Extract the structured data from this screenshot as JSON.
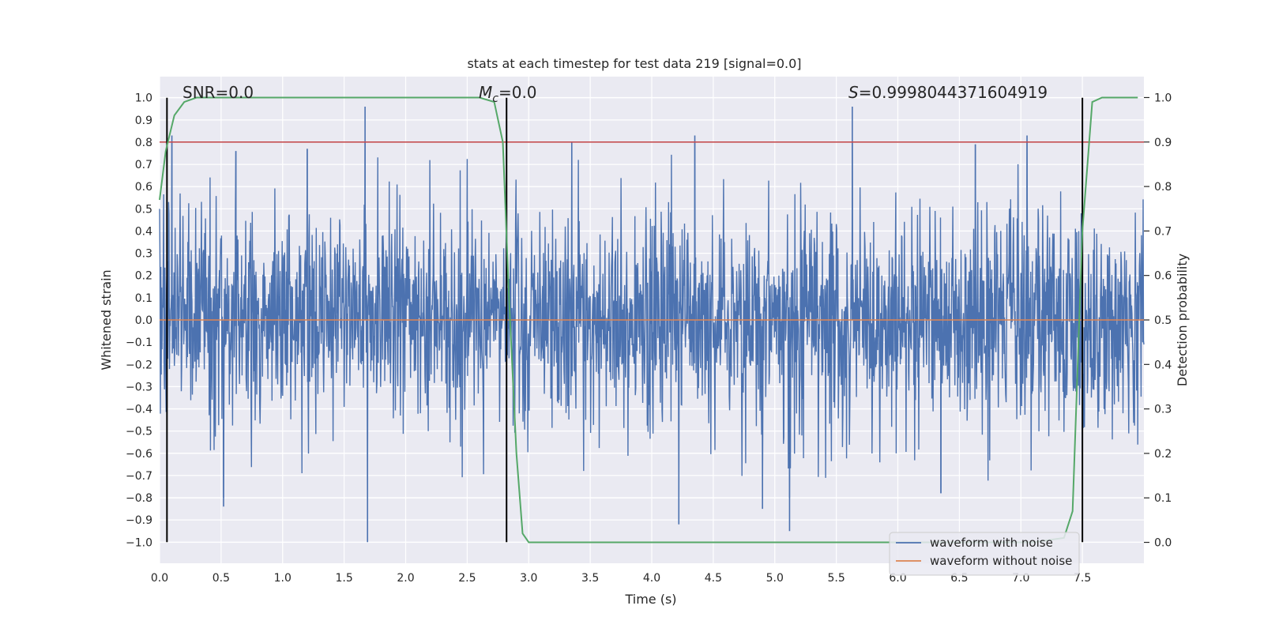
{
  "chart_data": {
    "type": "line",
    "title": "stats at each timestep for test data 219 [signal=0.0]",
    "xlabel": "Time (s)",
    "ylabel": "Whitened strain",
    "y2label": "Detection probability",
    "xlim": [
      0.0,
      8.0
    ],
    "ylim": [
      -1.095,
      1.095
    ],
    "y2lim": [
      -0.047,
      1.047
    ],
    "x_ticks": [
      0.0,
      0.5,
      1.0,
      1.5,
      2.0,
      2.5,
      3.0,
      3.5,
      4.0,
      4.5,
      5.0,
      5.5,
      6.0,
      6.5,
      7.0,
      7.5
    ],
    "x_tick_labels": [
      "0.0",
      "0.5",
      "1.0",
      "1.5",
      "2.0",
      "2.5",
      "3.0",
      "3.5",
      "4.0",
      "4.5",
      "5.0",
      "5.5",
      "6.0",
      "6.5",
      "7.0",
      "7.5"
    ],
    "y_ticks": [
      1.0,
      0.9,
      0.8,
      0.7,
      0.6,
      0.5,
      0.4,
      0.3,
      0.2,
      0.1,
      0.0,
      -0.1,
      -0.2,
      -0.3,
      -0.4,
      -0.5,
      -0.6,
      -0.7,
      -0.8,
      -0.9,
      -1.0
    ],
    "y_tick_labels": [
      "1.0",
      "0.9",
      "0.8",
      "0.7",
      "0.6",
      "0.5",
      "0.4",
      "0.3",
      "0.2",
      "0.1",
      "0.0",
      "−0.1",
      "−0.2",
      "−0.3",
      "−0.4",
      "−0.5",
      "−0.6",
      "−0.7",
      "−0.8",
      "−0.9",
      "−1.0"
    ],
    "y2_ticks": [
      1.0,
      0.9,
      0.8,
      0.7,
      0.6,
      0.5,
      0.4,
      0.3,
      0.2,
      0.1,
      0.0
    ],
    "y2_tick_labels": [
      "1.0",
      "0.9",
      "0.8",
      "0.7",
      "0.6",
      "0.5",
      "0.4",
      "0.3",
      "0.2",
      "0.1",
      "0.0"
    ],
    "series": [
      {
        "name": "waveform with noise",
        "color": "#4c72b0",
        "description": "noise-dominated whitened strain, roughly ±0.4 with spikes to ±1.0",
        "noise_amplitude": 0.4,
        "spikes": [
          {
            "x": 1.67,
            "y": 0.96
          },
          {
            "x": 5.63,
            "y": 0.96
          },
          {
            "x": 1.69,
            "y": -1.0
          },
          {
            "x": 5.12,
            "y": -0.95
          },
          {
            "x": 4.22,
            "y": -0.92
          },
          {
            "x": 0.52,
            "y": -0.84
          },
          {
            "x": 4.35,
            "y": 0.83
          },
          {
            "x": 7.05,
            "y": 0.83
          },
          {
            "x": 3.35,
            "y": 0.8
          },
          {
            "x": 0.1,
            "y": 0.83
          },
          {
            "x": 4.9,
            "y": -0.85
          },
          {
            "x": 6.63,
            "y": 0.79
          },
          {
            "x": 0.62,
            "y": 0.76
          },
          {
            "x": 1.2,
            "y": 0.77
          },
          {
            "x": 6.35,
            "y": -0.78
          }
        ]
      },
      {
        "name": "waveform without noise",
        "color": "#dd8452",
        "x": [
          0.0,
          8.0
        ],
        "y": [
          0.0,
          0.0
        ]
      },
      {
        "name": "detection probability",
        "axis": "right",
        "color": "#55a868",
        "x": [
          0.0,
          0.05,
          0.12,
          0.2,
          0.3,
          0.4,
          0.6,
          2.5,
          2.6,
          2.72,
          2.79,
          2.84,
          2.9,
          2.95,
          3.0,
          3.5,
          7.1,
          7.35,
          7.42,
          7.5,
          7.58,
          7.66,
          7.8,
          7.95
        ],
        "y": [
          0.77,
          0.88,
          0.96,
          0.99,
          1.0,
          1.0,
          1.0,
          1.0,
          1.0,
          0.99,
          0.9,
          0.55,
          0.2,
          0.02,
          0.0,
          0.0,
          0.0,
          0.01,
          0.07,
          0.7,
          0.99,
          1.0,
          1.0,
          1.0
        ]
      }
    ],
    "threshold_line": {
      "value": 0.9,
      "axis": "right",
      "color": "#c44e52"
    },
    "vertical_markers": [
      {
        "x": 0.06,
        "color": "#000000"
      },
      {
        "x": 2.82,
        "color": "#000000"
      },
      {
        "x": 7.5,
        "color": "#000000"
      }
    ],
    "annotations": {
      "snr": "SNR=0.0",
      "mc_symbol": "M",
      "mc_sub": "c",
      "mc_value": "=0.0",
      "s_symbol": "S",
      "s_value": "=0.9998044371604919"
    },
    "legend": {
      "placement": "lower-right",
      "entries": [
        "waveform with noise",
        "waveform without noise"
      ]
    },
    "grid": true
  }
}
